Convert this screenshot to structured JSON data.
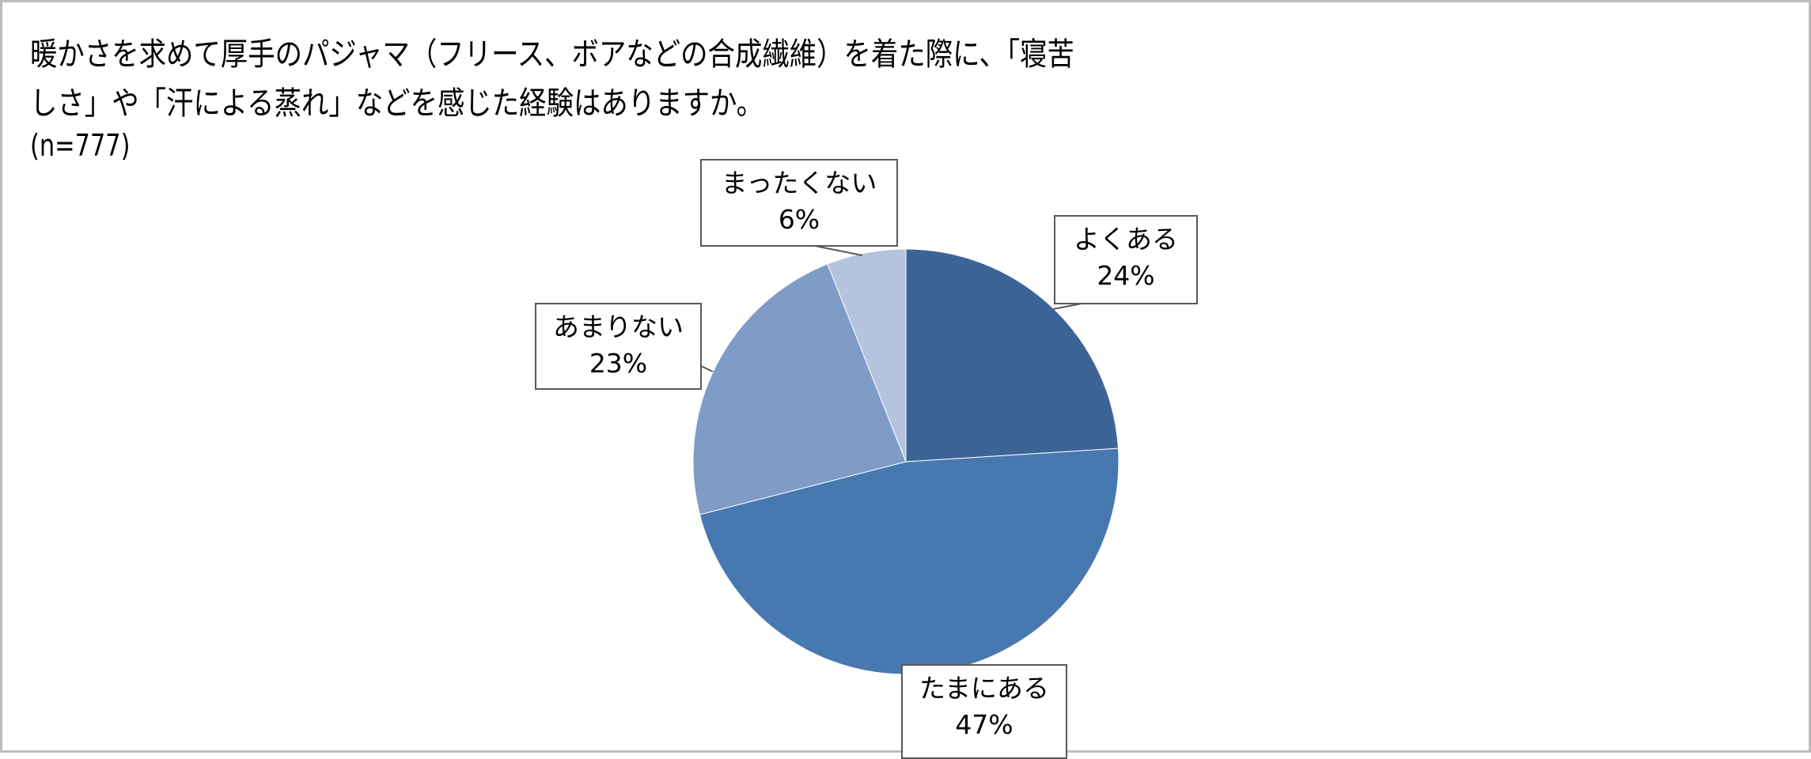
{
  "chart_data": {
    "type": "pie",
    "title_lines": [
      "暖かさを求めて厚手のパジャマ（フリース、ボアなどの合成繊維）を着た際に、「寝苦",
      "しさ」や「汗による蒸れ」などを感じた経験はありますか。"
    ],
    "subtitle": "(n=777)",
    "slices": [
      {
        "label": "よくある",
        "value": 24,
        "display": "24%",
        "color": "#3d6496"
      },
      {
        "label": "たまにある",
        "value": 47,
        "display": "47%",
        "color": "#4878b0"
      },
      {
        "label": "あまりない",
        "value": 23,
        "display": "23%",
        "color": "#7f9cc7"
      },
      {
        "label": "まったくない",
        "value": 6,
        "display": "6%",
        "color": "#b4c3de"
      }
    ],
    "start": "12 o'clock",
    "direction": "clockwise",
    "legend": "none"
  }
}
